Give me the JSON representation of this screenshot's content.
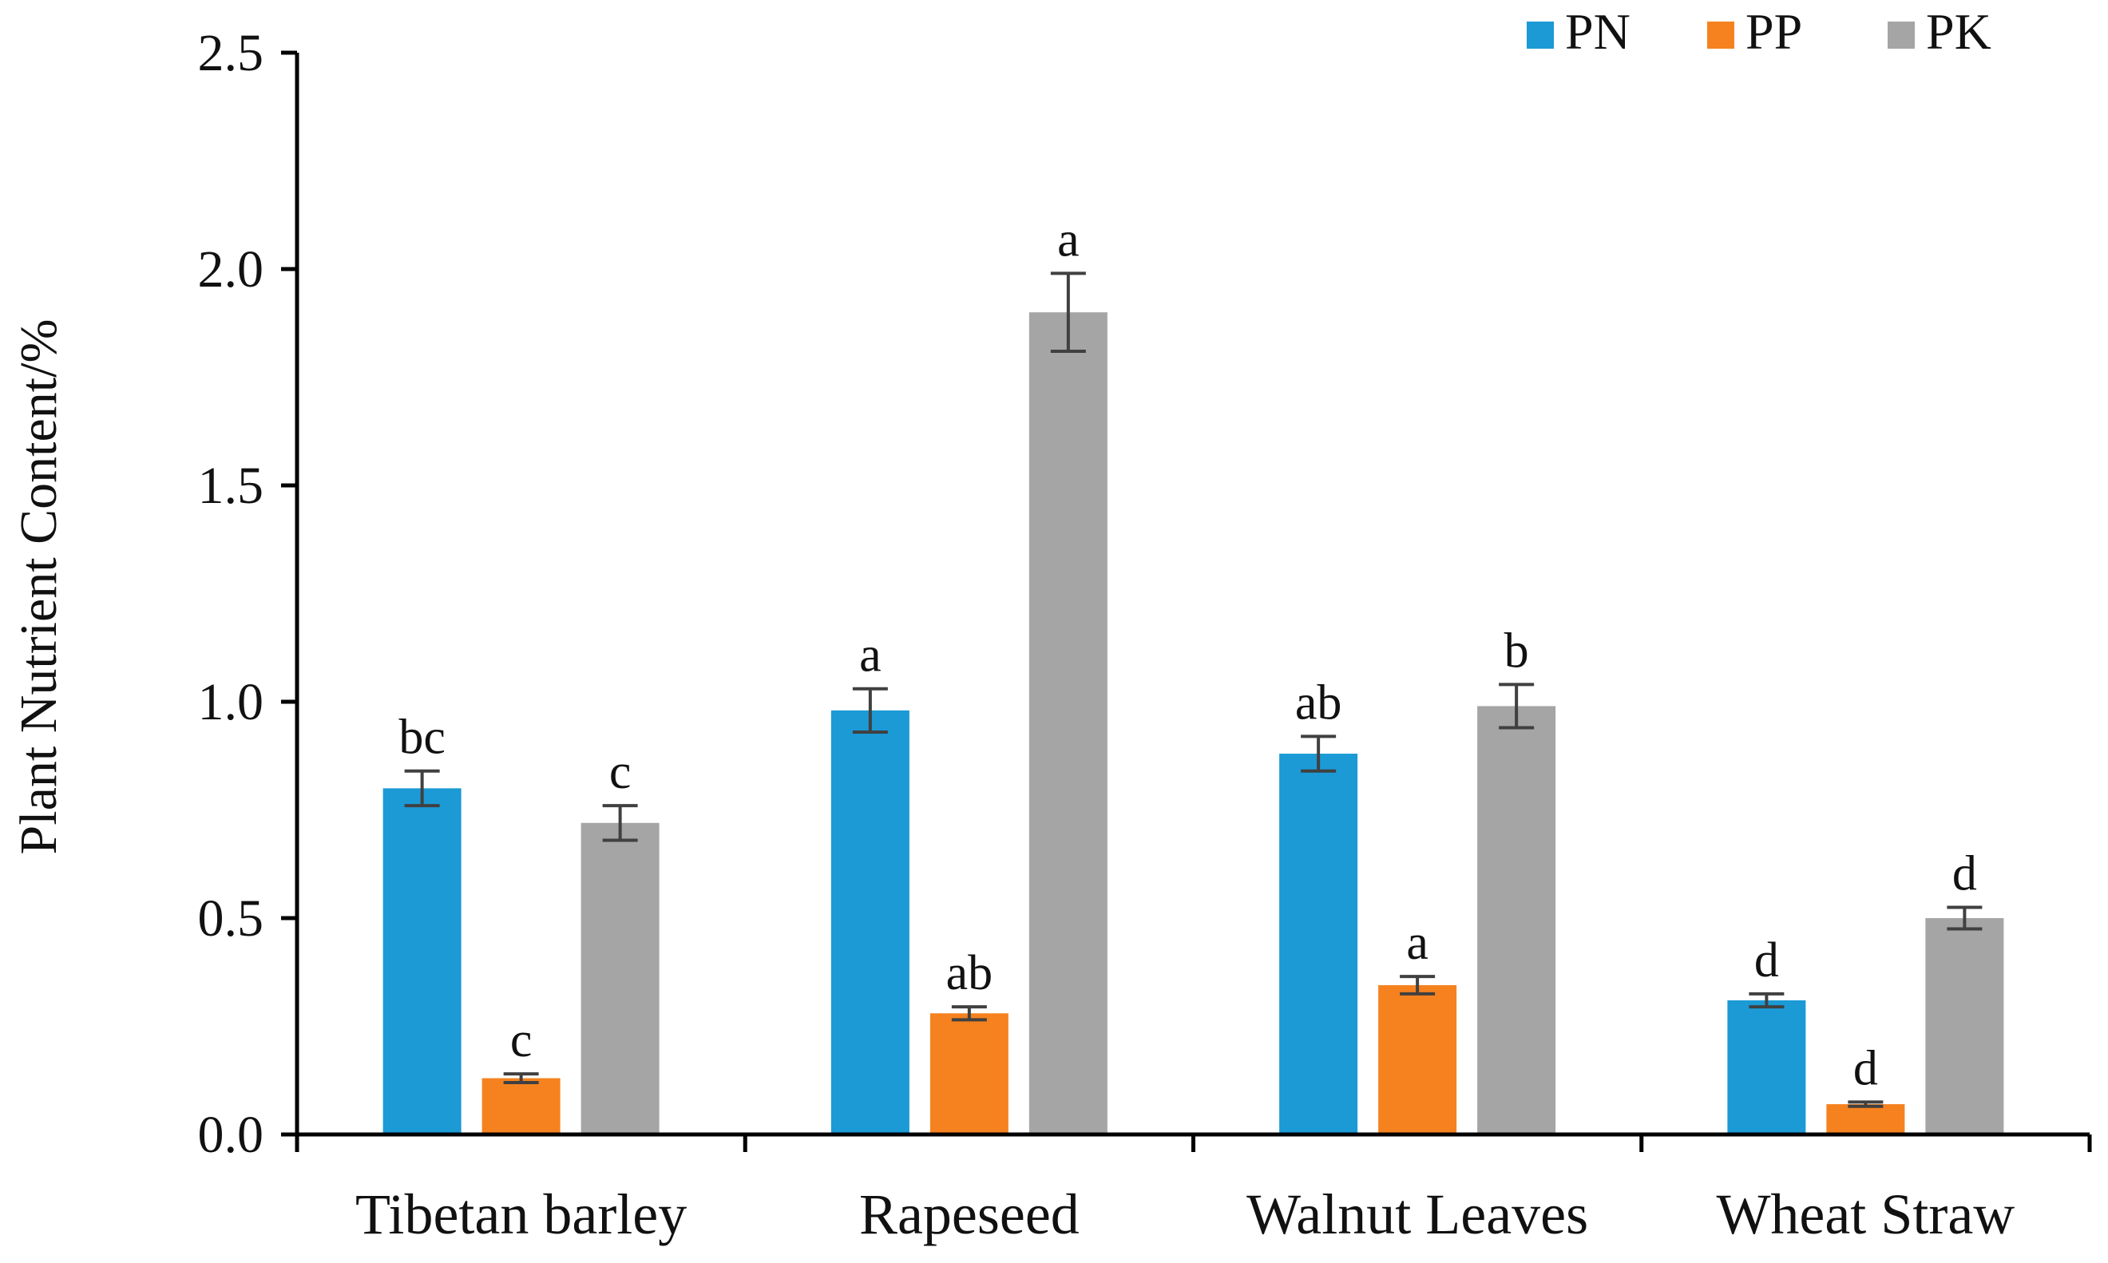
{
  "chart_data": {
    "type": "bar",
    "title": "",
    "xlabel": "",
    "ylabel": "Plant Nutrient Content/%",
    "ylim": [
      0,
      2.5
    ],
    "yticks": [
      "0.0",
      "0.5",
      "1.0",
      "1.5",
      "2.0",
      "2.5"
    ],
    "ytick_values": [
      0,
      0.5,
      1.0,
      1.5,
      2.0,
      2.5
    ],
    "categories": [
      "Tibetan barley",
      "Rapeseed",
      "Walnut Leaves",
      "Wheat Straw"
    ],
    "legend_position": "top-right",
    "series": [
      {
        "name": "PN",
        "color": "#1b9ad6",
        "values": [
          0.8,
          0.98,
          0.88,
          0.31
        ],
        "errors": [
          0.04,
          0.05,
          0.04,
          0.015
        ],
        "labels": [
          "bc",
          "a",
          "ab",
          "d"
        ]
      },
      {
        "name": "PP",
        "color": "#f5821f",
        "values": [
          0.13,
          0.28,
          0.345,
          0.07
        ],
        "errors": [
          0.01,
          0.015,
          0.02,
          0.005
        ],
        "labels": [
          "c",
          "ab",
          "a",
          "d"
        ]
      },
      {
        "name": "PK",
        "color": "#a5a5a5",
        "values": [
          0.72,
          1.9,
          0.99,
          0.5
        ],
        "errors": [
          0.04,
          0.09,
          0.05,
          0.025
        ],
        "labels": [
          "c",
          "a",
          "b",
          "d"
        ]
      }
    ]
  }
}
